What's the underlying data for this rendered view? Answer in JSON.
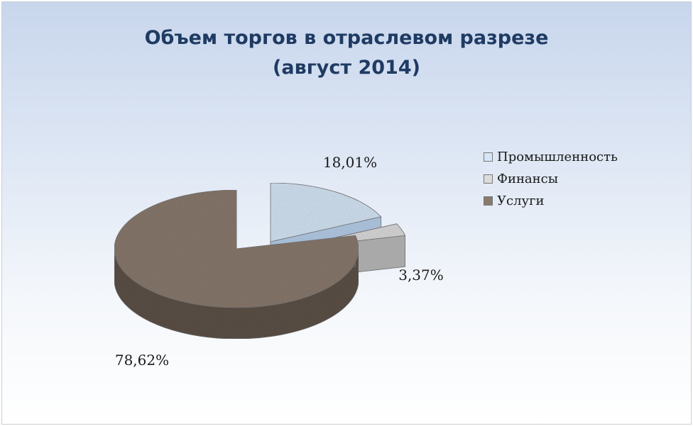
{
  "chart_data": {
    "type": "pie",
    "title_lines": [
      "Объем торгов в отраслевом разрезе",
      "(август 2014)"
    ],
    "categories": [
      "Промышленность",
      "Финансы",
      "Услуги"
    ],
    "values": [
      18.01,
      3.37,
      78.62
    ],
    "data_labels": [
      "18,01%",
      "3,37%",
      "78,62%"
    ],
    "colors": [
      "#d6e6f6",
      "#dcdcdc",
      "#8a7a6e"
    ],
    "side_colors": [
      "#a7bdd6",
      "#a9a9a9",
      "#5e524a"
    ],
    "legend_position": "right"
  }
}
